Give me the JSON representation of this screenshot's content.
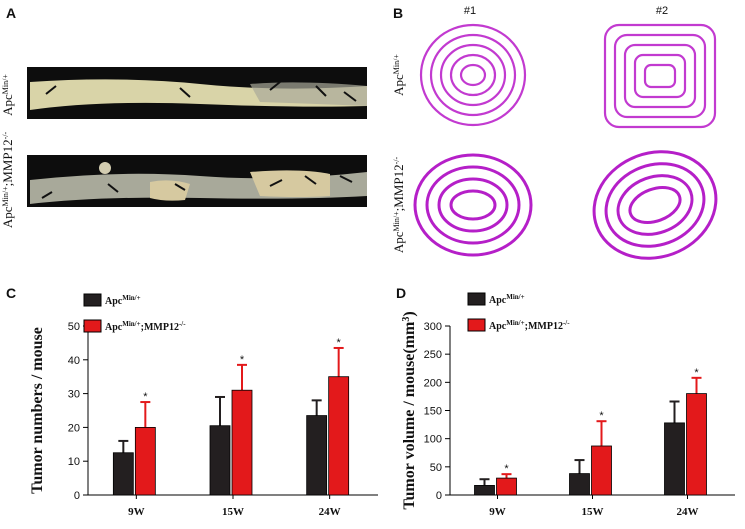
{
  "panels": {
    "A": {
      "letter": "A",
      "row_labels": [
        [
          "Apc",
          "Min/+"
        ],
        [
          "Apc",
          "Min/+",
          ";MMP12",
          "-/-"
        ]
      ]
    },
    "B": {
      "letter": "B",
      "column_labels": [
        "#1",
        "#2"
      ],
      "row_labels": [
        [
          "Apc",
          "Min/+"
        ],
        [
          "Apc",
          "Min/+",
          ";MMP12",
          "-/-"
        ]
      ]
    }
  },
  "chart_data": [
    {
      "type": "bar",
      "letter": "C",
      "ylabel": [
        "Tumor numbers / mouse"
      ],
      "categories": [
        "9W",
        "15W",
        "24W"
      ],
      "series": [
        {
          "name": [
            "Apc",
            "Min/+"
          ],
          "color": "#231f20",
          "values": [
            12.5,
            20.5,
            23.5
          ],
          "errors": [
            3.5,
            8.5,
            4.5
          ]
        },
        {
          "name": [
            "Apc",
            "Min/+",
            ";MMP12",
            "-/-"
          ],
          "color": "#e3191b",
          "values": [
            20,
            31,
            35
          ],
          "errors": [
            7.5,
            7.5,
            8.5
          ],
          "significance": [
            "*",
            "*",
            "*"
          ]
        }
      ],
      "ylim": [
        0,
        50
      ],
      "yticks": [
        0,
        10,
        20,
        30,
        40,
        50
      ]
    },
    {
      "type": "bar",
      "letter": "D",
      "ylabel": [
        "Tumor volume / mouse(mm",
        "3",
        ")"
      ],
      "categories": [
        "9W",
        "15W",
        "24W"
      ],
      "series": [
        {
          "name": [
            "Apc",
            "Min/+"
          ],
          "color": "#231f20",
          "values": [
            17,
            38,
            128
          ],
          "errors": [
            11,
            24,
            38
          ]
        },
        {
          "name": [
            "Apc",
            "Min/+",
            ";MMP12",
            "-/-"
          ],
          "color": "#e3191b",
          "values": [
            30,
            87,
            180
          ],
          "errors": [
            7,
            44,
            28
          ],
          "significance": [
            "*",
            "*",
            "*"
          ]
        }
      ],
      "ylim": [
        0,
        300
      ],
      "yticks": [
        0,
        50,
        100,
        150,
        200,
        250,
        300
      ]
    }
  ]
}
